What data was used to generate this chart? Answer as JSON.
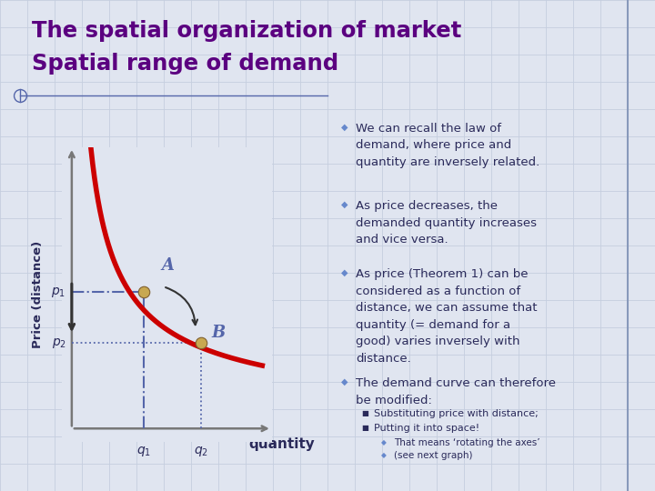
{
  "title_line1": "The spatial organization of market",
  "title_line2": "Spatial range of demand",
  "title_color": "#5B0080",
  "bg_color": "#E0E5F0",
  "grid_color": "#C5CEDF",
  "ylabel": "Price (distance)",
  "xlabel": "quantity",
  "curve_color": "#CC0000",
  "dashed_color": "#5566AA",
  "point_color": "#C8A850",
  "text_color": "#2A2A5A",
  "bullet_color": "#6688CC",
  "divider_color": "#8899BB",
  "axis_color": "#777777",
  "arrow_color": "#333333",
  "q1": 3.8,
  "p1": 5.1,
  "q2": 6.8,
  "p2": 3.2
}
